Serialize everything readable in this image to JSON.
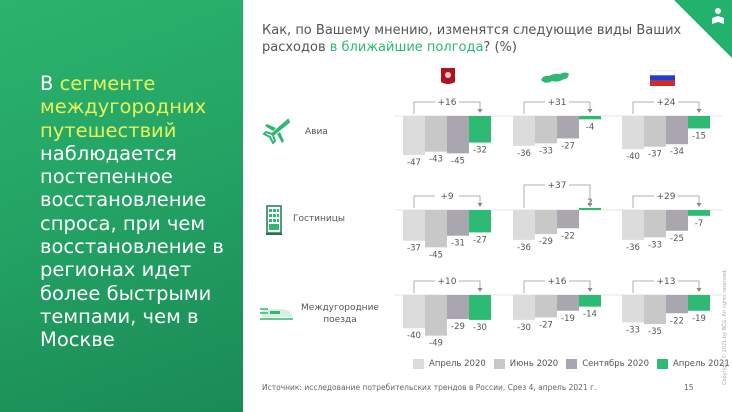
{
  "left_panel": {
    "pre": "В ",
    "highlight": "сегменте междугородних путешествий",
    "post": " наблюдается постепенное восстановление спроса, при чем восстановление в регионах идет более быстрыми темпами, чем в Москве"
  },
  "title": {
    "pre": "Как, по Вашему мнению, изменятся следующие виды Ваших расходов ",
    "highlight": "в ближайшие полгода",
    "post": "? (%)"
  },
  "colors": {
    "apr2020": "#dcdcdc",
    "jun2020": "#c8c8c8",
    "sep2020": "#a9a6b0",
    "apr2021": "#2dba72",
    "accent": "#22b26d"
  },
  "columns": [
    {
      "name": "Москва",
      "icon": "moscow-coat-of-arms-icon"
    },
    {
      "name": "Регионы",
      "icon": "russia-map-icon"
    },
    {
      "name": "Россия",
      "icon": "russia-flag-icon"
    }
  ],
  "chart_data": {
    "type": "bar",
    "series_names": [
      "Апрель 2020",
      "Июнь 2020",
      "Сентябрь 2020",
      "Апрель 2021"
    ],
    "rows": [
      {
        "category": "Авиа",
        "icon": "airplane-icon",
        "groups": [
          {
            "values": [
              -47,
              -43,
              -45,
              -32
            ],
            "delta": "+16"
          },
          {
            "values": [
              -36,
              -33,
              -27,
              -4
            ],
            "delta": "+31"
          },
          {
            "values": [
              -40,
              -37,
              -34,
              -15
            ],
            "delta": "+24"
          }
        ]
      },
      {
        "category": "Гостиницы",
        "icon": "hotel-icon",
        "groups": [
          {
            "values": [
              -37,
              -45,
              -31,
              -27
            ],
            "delta": "+9"
          },
          {
            "values": [
              -36,
              -29,
              -22,
              2
            ],
            "delta": "+37"
          },
          {
            "values": [
              -36,
              -33,
              -25,
              -7
            ],
            "delta": "+29"
          }
        ]
      },
      {
        "category": "Междугородние поезда",
        "icon": "train-icon",
        "groups": [
          {
            "values": [
              -40,
              -49,
              -29,
              -30
            ],
            "delta": "+10"
          },
          {
            "values": [
              -30,
              -27,
              -19,
              -14
            ],
            "delta": "+16"
          },
          {
            "values": [
              -33,
              -35,
              -22,
              -19
            ],
            "delta": "+13"
          }
        ]
      }
    ]
  },
  "source": "Источник: исследование потребительских трендов в России, Срез 4, апрель 2021 г.",
  "page_number": "15",
  "copyright": "Copyright © 2021 by BCG. All rights reserved."
}
